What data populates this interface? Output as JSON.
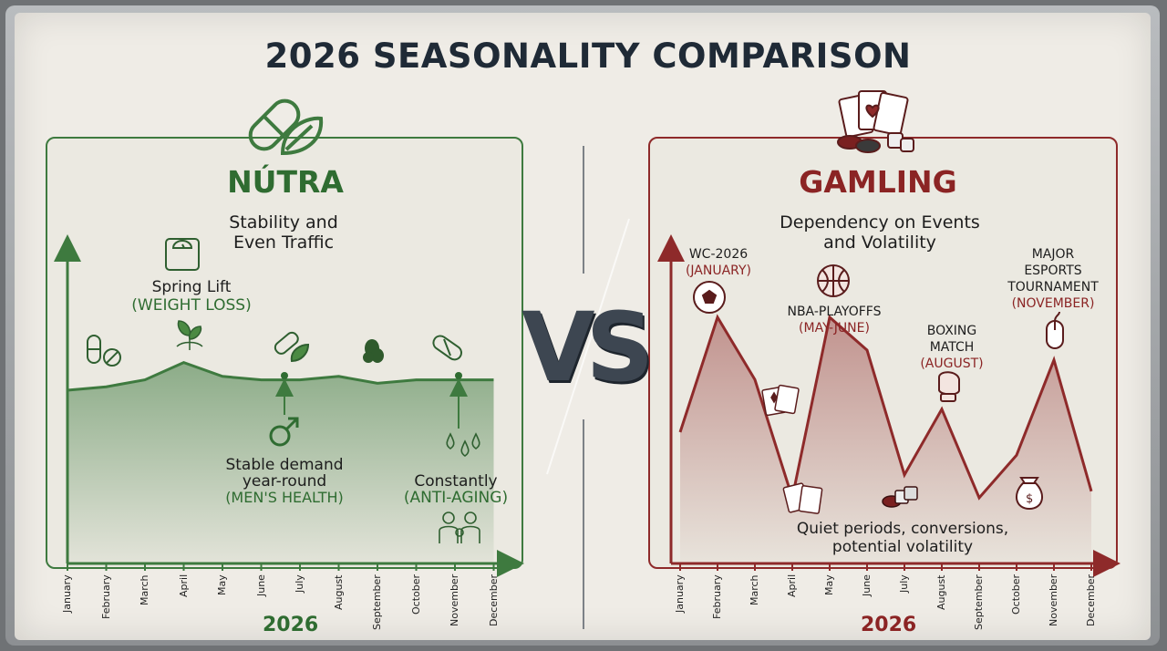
{
  "title": "2026 SEASONALITY COMPARISON",
  "vs_label": "VS",
  "colors": {
    "nutra": "#3e7a3f",
    "gambling": "#8e2a2a",
    "title": "#1f2a36"
  },
  "nutra": {
    "title": "NÚTRA",
    "subtitle_line1": "Stability and",
    "subtitle_line2": "Even Traffic",
    "annotations": {
      "spring_title": "Spring Lift",
      "spring_note": "(WEIGHT LOSS)",
      "stable_line1": "Stable demand",
      "stable_line2": "year-round",
      "stable_note": "(MEN'S HEALTH)",
      "constant_title": "Constantly",
      "constant_note": "(ANTI-AGING)"
    },
    "year_label": "2026"
  },
  "gambling": {
    "title": "GAMLING",
    "subtitle_line1": "Dependency on Events",
    "subtitle_line2": "and Volatility",
    "annotations": {
      "wc_title": "WC-2026",
      "wc_note": "(JANUARY)",
      "nba_title": "NBA-PLAYOFFS",
      "nba_note": "(MAY-JUNE)",
      "boxing_line1": "BOXING",
      "boxing_line2": "MATCH",
      "boxing_note": "(AUGUST)",
      "esports_line1": "MAJOR",
      "esports_line2": "ESPORTS",
      "esports_line3": "TOURNAMENT",
      "esports_note": "(NOVEMBER)",
      "quiet_line1": "Quiet periods, conversions,",
      "quiet_line2": "potential volatility"
    },
    "year_label": "2026"
  },
  "chart_data": [
    {
      "type": "area",
      "title": "NÚTRA",
      "categories": [
        "January",
        "February",
        "March",
        "April",
        "May",
        "June",
        "July",
        "August",
        "September",
        "October",
        "November",
        "December"
      ],
      "series": [
        {
          "values": [
            50,
            51,
            53,
            58,
            54,
            53,
            53,
            54,
            52,
            53,
            53,
            53
          ]
        }
      ],
      "ylim": [
        0,
        100
      ],
      "grid": false
    },
    {
      "type": "area",
      "title": "GAMLING",
      "categories": [
        "January",
        "February",
        "March",
        "April",
        "May",
        "June",
        "July",
        "August",
        "September",
        "October",
        "November",
        "December"
      ],
      "series": [
        {
          "values": [
            40,
            75,
            56,
            20,
            75,
            65,
            27,
            47,
            20,
            33,
            62,
            22
          ]
        }
      ],
      "ylim": [
        0,
        100
      ],
      "grid": false
    }
  ],
  "icons": [
    "capsule-leaf-icon",
    "cards-chips-dice-icon",
    "scale-icon",
    "pill-icon",
    "leaf-sprout-icon",
    "male-symbol-icon",
    "water-drops-icon",
    "family-icon",
    "soccer-ball-icon",
    "basketball-icon",
    "boxing-glove-icon",
    "computer-mouse-icon",
    "playing-cards-icon",
    "money-bag-icon",
    "dice-chips-icon"
  ]
}
